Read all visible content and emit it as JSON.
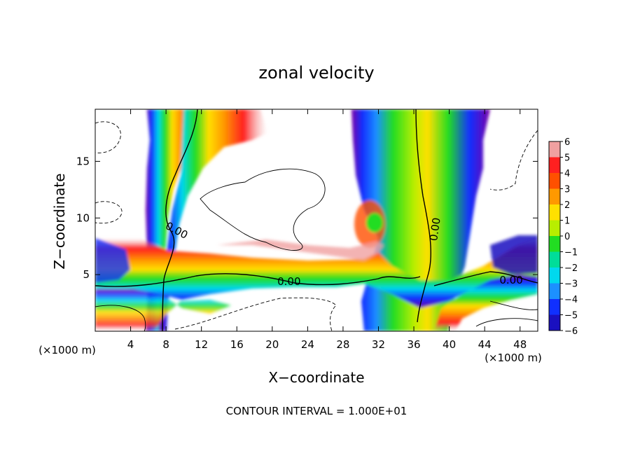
{
  "chart_data": {
    "type": "heatmap",
    "title": "zonal velocity",
    "xlabel": "X−coordinate",
    "ylabel": "Z−coordinate",
    "xlim": [
      0,
      50
    ],
    "ylim": [
      0,
      19.6
    ],
    "x_ticks": [
      4,
      8,
      12,
      16,
      20,
      24,
      28,
      32,
      36,
      40,
      44,
      48
    ],
    "y_ticks": [
      5,
      10,
      15
    ],
    "x_unit": "(×1000 m)",
    "x_unit_right": "(×1000 m)",
    "colorbar_levels": [
      "6",
      "5",
      "4",
      "3",
      "2",
      "1",
      "0",
      "−1",
      "−2",
      "−3",
      "−4",
      "−5",
      "−6"
    ],
    "contour_labels": [
      {
        "text": "0.00",
        "x": 9.2,
        "z": 8.9
      },
      {
        "text": "0.00",
        "x": 21.9,
        "z": 4.4
      },
      {
        "text": "0.00",
        "x": 38.4,
        "z": 9.0
      },
      {
        "text": "0.00",
        "x": 47.0,
        "z": 4.5
      }
    ],
    "contour_interval": "CONTOUR INTERVAL = 1.000E+01",
    "colors": {
      "pos6": "#f0a0a0",
      "pos5": "#ff2020",
      "pos4": "#ff5000",
      "pos3": "#ff9900",
      "pos2": "#ffe000",
      "pos1": "#b8ee00",
      "zero": "#22dd22",
      "neg1": "#00dd99",
      "neg2": "#00d8ee",
      "neg3": "#1c90ff",
      "neg4": "#1030ff",
      "neg5": "#1a10c0",
      "neg6": "#7a00a8"
    }
  }
}
